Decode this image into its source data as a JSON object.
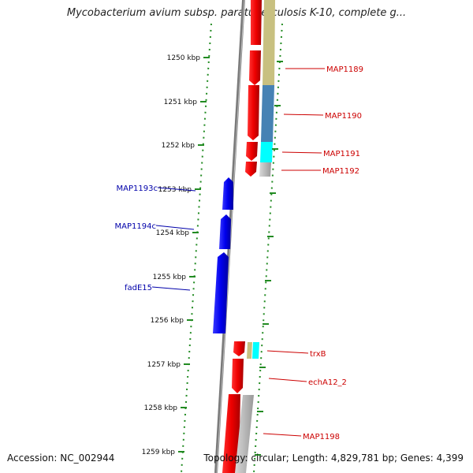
{
  "title": "Mycobacterium avium subsp. paratuberculosis K-10, complete g...",
  "footer": {
    "accession": "Accession: NC_002944",
    "summary": "Topology: circular; Length: 4,829,781 bp; Genes: 4,399"
  },
  "ticks": [
    {
      "label": "1250 kbp",
      "position_kbp": 1250
    },
    {
      "label": "1251 kbp",
      "position_kbp": 1251
    },
    {
      "label": "1252 kbp",
      "position_kbp": 1252
    },
    {
      "label": "1253 kbp",
      "position_kbp": 1253
    },
    {
      "label": "1254 kbp",
      "position_kbp": 1254
    },
    {
      "label": "1255 kbp",
      "position_kbp": 1255
    },
    {
      "label": "1256 kbp",
      "position_kbp": 1256
    },
    {
      "label": "1257 kbp",
      "position_kbp": 1257
    },
    {
      "label": "1258 kbp",
      "position_kbp": 1258
    },
    {
      "label": "1259 kbp",
      "position_kbp": 1259
    }
  ],
  "genes_right": [
    {
      "label": "MAP1189",
      "color": "#cc0000"
    },
    {
      "label": "MAP1190",
      "color": "#cc0000"
    },
    {
      "label": "MAP1191",
      "color": "#cc0000"
    },
    {
      "label": "MAP1192",
      "color": "#cc0000"
    },
    {
      "label": "trxB",
      "color": "#cc0000"
    },
    {
      "label": "echA12_2",
      "color": "#cc0000"
    },
    {
      "label": "MAP1198",
      "color": "#cc0000"
    }
  ],
  "genes_left": [
    {
      "label": "MAP1193c",
      "color": "#0000aa"
    },
    {
      "label": "MAP1194c",
      "color": "#0000aa"
    },
    {
      "label": "fadE15",
      "color": "#0000aa"
    }
  ],
  "colors": {
    "forward_gene": "#ee0000",
    "reverse_gene": "#0000ee",
    "backbone": "#888888",
    "tick": "#228b22",
    "cog_olive": "#c8c080",
    "cog_steel": "#4682b4",
    "cog_cyan": "#00ffff",
    "cog_gray": "#b0b0b0"
  }
}
